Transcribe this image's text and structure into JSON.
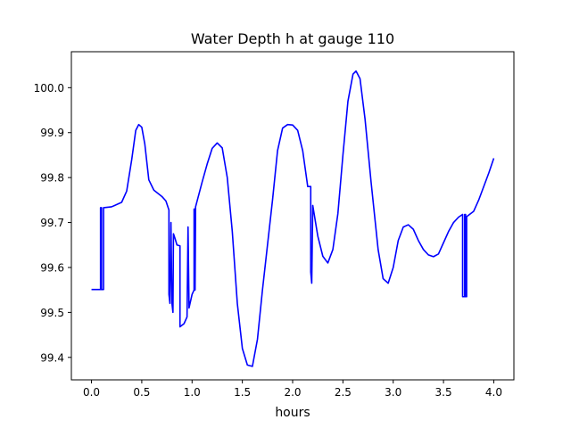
{
  "chart_data": {
    "type": "line",
    "title": "Water Depth h at gauge 110",
    "xlabel": "hours",
    "ylabel": "",
    "xlim": [
      -0.2,
      4.2
    ],
    "ylim": [
      99.35,
      100.08
    ],
    "xticks": [
      0.0,
      0.5,
      1.0,
      1.5,
      2.0,
      2.5,
      3.0,
      3.5,
      4.0
    ],
    "xtick_labels": [
      "0.0",
      "0.5",
      "1.0",
      "1.5",
      "2.0",
      "2.5",
      "3.0",
      "3.5",
      "4.0"
    ],
    "yticks": [
      99.4,
      99.5,
      99.6,
      99.7,
      99.8,
      99.9,
      100.0
    ],
    "ytick_labels": [
      "99.4",
      "99.5",
      "99.6",
      "99.7",
      "99.8",
      "99.9",
      "100.0"
    ],
    "grid": false,
    "legend": "none",
    "series": [
      {
        "color": "#0000ff",
        "points": [
          [
            0.0,
            99.551
          ],
          [
            0.09,
            99.551
          ],
          [
            0.09,
            99.733
          ],
          [
            0.1,
            99.733
          ],
          [
            0.1,
            99.551
          ],
          [
            0.12,
            99.551
          ],
          [
            0.12,
            99.733
          ],
          [
            0.2,
            99.735
          ],
          [
            0.3,
            99.745
          ],
          [
            0.35,
            99.77
          ],
          [
            0.4,
            99.84
          ],
          [
            0.44,
            99.905
          ],
          [
            0.47,
            99.918
          ],
          [
            0.5,
            99.912
          ],
          [
            0.53,
            99.875
          ],
          [
            0.57,
            99.795
          ],
          [
            0.62,
            99.772
          ],
          [
            0.7,
            99.758
          ],
          [
            0.74,
            99.748
          ],
          [
            0.77,
            99.728
          ],
          [
            0.77,
            99.54
          ],
          [
            0.78,
            99.52
          ],
          [
            0.79,
            99.7
          ],
          [
            0.8,
            99.52
          ],
          [
            0.81,
            99.5
          ],
          [
            0.815,
            99.675
          ],
          [
            0.83,
            99.665
          ],
          [
            0.85,
            99.65
          ],
          [
            0.88,
            99.648
          ],
          [
            0.88,
            99.468
          ],
          [
            0.92,
            99.475
          ],
          [
            0.95,
            99.49
          ],
          [
            0.96,
            99.69
          ],
          [
            0.97,
            99.51
          ],
          [
            1.0,
            99.54
          ],
          [
            1.02,
            99.55
          ],
          [
            1.02,
            99.73
          ],
          [
            1.03,
            99.73
          ],
          [
            1.03,
            99.55
          ],
          [
            1.035,
            99.735
          ],
          [
            1.1,
            99.79
          ],
          [
            1.15,
            99.83
          ],
          [
            1.2,
            99.865
          ],
          [
            1.25,
            99.877
          ],
          [
            1.3,
            99.866
          ],
          [
            1.35,
            99.8
          ],
          [
            1.4,
            99.68
          ],
          [
            1.45,
            99.52
          ],
          [
            1.5,
            99.42
          ],
          [
            1.55,
            99.383
          ],
          [
            1.6,
            99.38
          ],
          [
            1.65,
            99.44
          ],
          [
            1.7,
            99.55
          ],
          [
            1.75,
            99.65
          ],
          [
            1.8,
            99.75
          ],
          [
            1.85,
            99.86
          ],
          [
            1.9,
            99.91
          ],
          [
            1.95,
            99.918
          ],
          [
            2.0,
            99.917
          ],
          [
            2.05,
            99.905
          ],
          [
            2.1,
            99.86
          ],
          [
            2.15,
            99.78
          ],
          [
            2.18,
            99.78
          ],
          [
            2.18,
            99.59
          ],
          [
            2.19,
            99.565
          ],
          [
            2.2,
            99.738
          ],
          [
            2.25,
            99.67
          ],
          [
            2.3,
            99.625
          ],
          [
            2.35,
            99.61
          ],
          [
            2.4,
            99.64
          ],
          [
            2.45,
            99.72
          ],
          [
            2.5,
            99.85
          ],
          [
            2.55,
            99.97
          ],
          [
            2.6,
            100.03
          ],
          [
            2.63,
            100.037
          ],
          [
            2.67,
            100.02
          ],
          [
            2.72,
            99.93
          ],
          [
            2.78,
            99.79
          ],
          [
            2.85,
            99.64
          ],
          [
            2.9,
            99.575
          ],
          [
            2.95,
            99.565
          ],
          [
            3.0,
            99.6
          ],
          [
            3.05,
            99.66
          ],
          [
            3.1,
            99.69
          ],
          [
            3.15,
            99.695
          ],
          [
            3.2,
            99.685
          ],
          [
            3.25,
            99.66
          ],
          [
            3.3,
            99.64
          ],
          [
            3.35,
            99.628
          ],
          [
            3.4,
            99.624
          ],
          [
            3.45,
            99.63
          ],
          [
            3.5,
            99.655
          ],
          [
            3.55,
            99.68
          ],
          [
            3.6,
            99.7
          ],
          [
            3.65,
            99.712
          ],
          [
            3.69,
            99.718
          ],
          [
            3.69,
            99.535
          ],
          [
            3.71,
            99.535
          ],
          [
            3.71,
            99.718
          ],
          [
            3.72,
            99.718
          ],
          [
            3.72,
            99.535
          ],
          [
            3.73,
            99.535
          ],
          [
            3.73,
            99.713
          ],
          [
            3.8,
            99.725
          ],
          [
            3.85,
            99.75
          ],
          [
            3.9,
            99.78
          ],
          [
            3.95,
            99.81
          ],
          [
            4.0,
            99.843
          ]
        ]
      }
    ]
  }
}
